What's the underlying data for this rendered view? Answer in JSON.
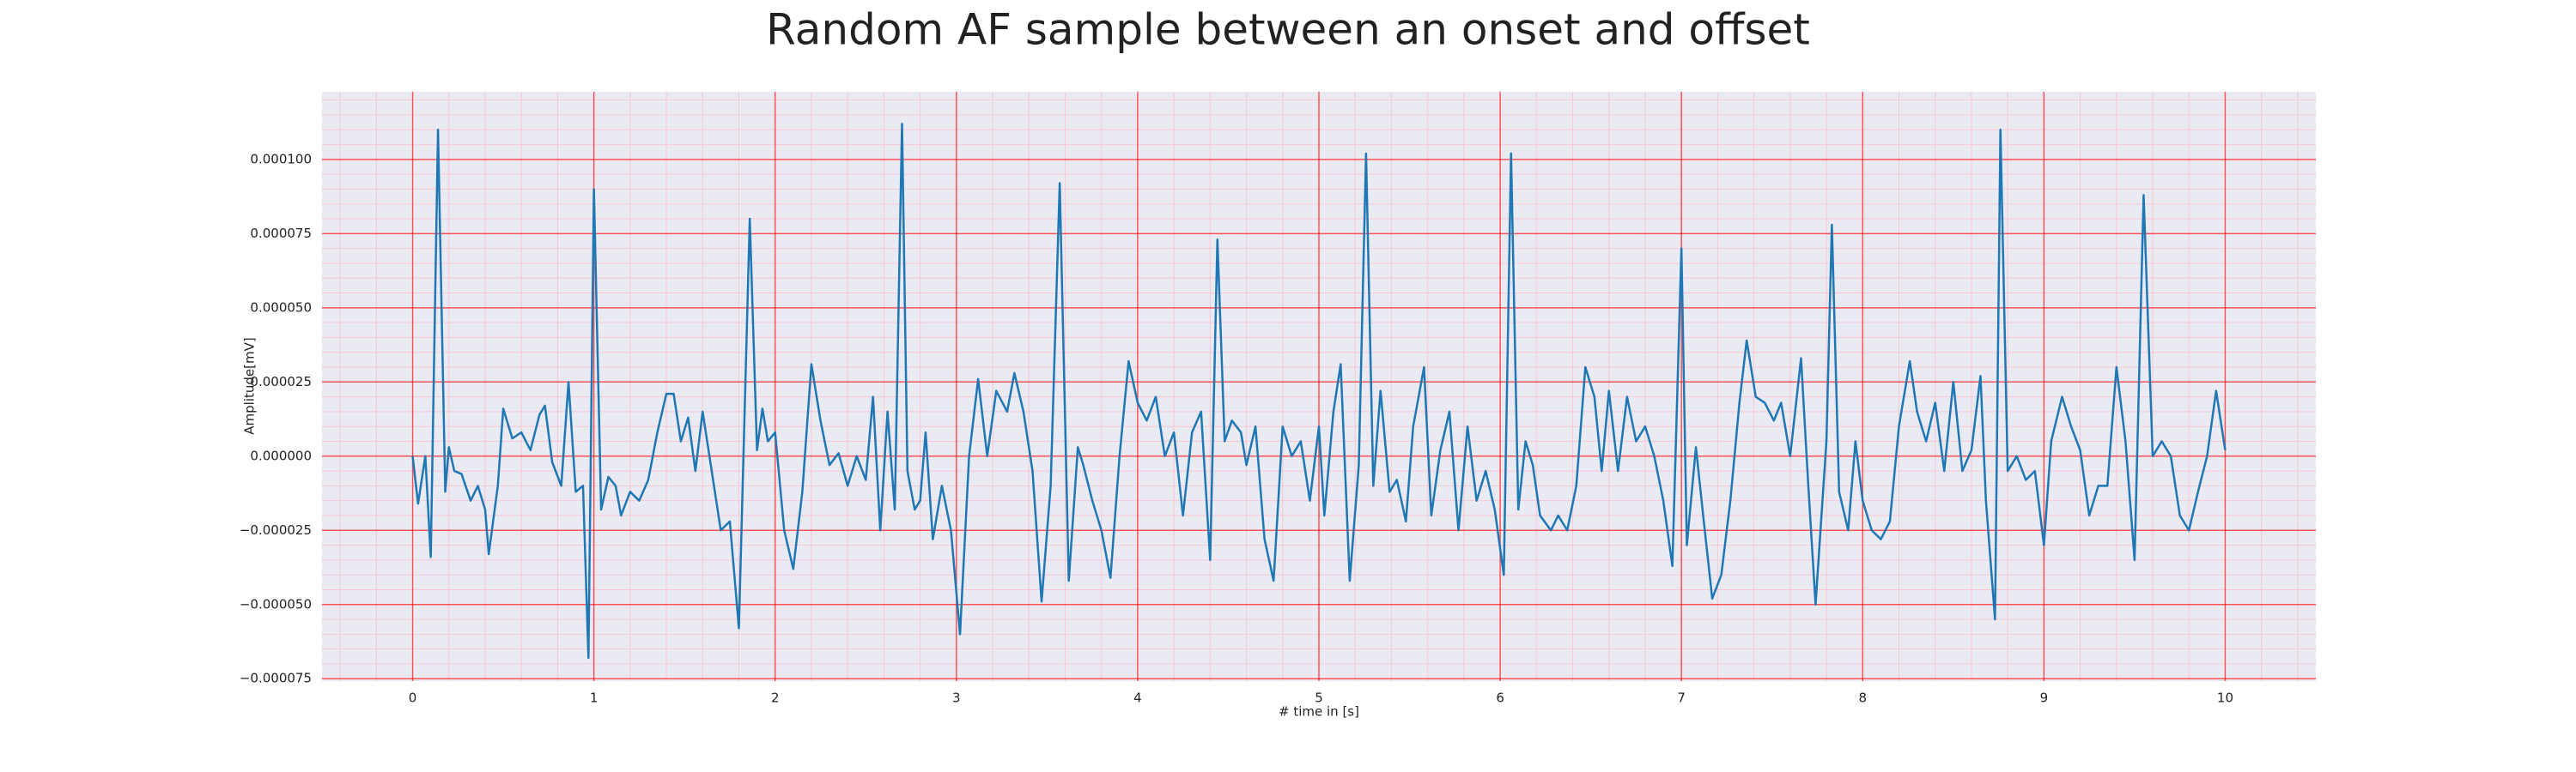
{
  "chart_data": {
    "type": "line",
    "title": "Random AF sample between an onset and offset",
    "xlabel": "# time in [s]",
    "ylabel": "Amplitude[mV]",
    "xlim": [
      -0.5,
      10.5
    ],
    "ylim": [
      -7.58e-05,
      0.0001228
    ],
    "xticks": [
      0,
      1,
      2,
      3,
      4,
      5,
      6,
      7,
      8,
      9,
      10
    ],
    "yticks": [
      {
        "value": -7.5e-05,
        "label": "−0.000075"
      },
      {
        "value": -5e-05,
        "label": "−0.000050"
      },
      {
        "value": -2.5e-05,
        "label": "−0.000025"
      },
      {
        "value": 0,
        "label": "0.000000"
      },
      {
        "value": 2.5e-05,
        "label": "0.000025"
      },
      {
        "value": 5e-05,
        "label": "0.000050"
      },
      {
        "value": 7.5e-05,
        "label": "0.000075"
      },
      {
        "value": 0.0001,
        "label": "0.000100"
      }
    ],
    "grid": true,
    "minor_grid": true,
    "background": "#eaeaf2",
    "grid_color": "#ff0000",
    "minor_grid_color": "#ffb0c0",
    "x": [
      0,
      0.03,
      0.07,
      0.1,
      0.14,
      0.18,
      0.2,
      0.23,
      0.27,
      0.32,
      0.36,
      0.4,
      0.42,
      0.47,
      0.5,
      0.55,
      0.6,
      0.65,
      0.7,
      0.73,
      0.77,
      0.82,
      0.86,
      0.9,
      0.94,
      0.97,
      1.0,
      1.04,
      1.08,
      1.12,
      1.15,
      1.2,
      1.25,
      1.3,
      1.35,
      1.4,
      1.44,
      1.48,
      1.52,
      1.56,
      1.6,
      1.65,
      1.7,
      1.75,
      1.8,
      1.86,
      1.9,
      1.93,
      1.96,
      2.0,
      2.05,
      2.1,
      2.15,
      2.2,
      2.25,
      2.3,
      2.35,
      2.4,
      2.45,
      2.5,
      2.54,
      2.58,
      2.62,
      2.66,
      2.7,
      2.73,
      2.77,
      2.8,
      2.83,
      2.87,
      2.92,
      2.97,
      3.02,
      3.07,
      3.12,
      3.17,
      3.22,
      3.28,
      3.32,
      3.37,
      3.42,
      3.47,
      3.52,
      3.57,
      3.62,
      3.67,
      3.7,
      3.75,
      3.8,
      3.85,
      3.9,
      3.95,
      4.0,
      4.05,
      4.1,
      4.15,
      4.2,
      4.25,
      4.3,
      4.35,
      4.4,
      4.44,
      4.48,
      4.52,
      4.57,
      4.6,
      4.65,
      4.7,
      4.75,
      4.8,
      4.85,
      4.9,
      4.95,
      5.0,
      5.03,
      5.08,
      5.12,
      5.17,
      5.22,
      5.26,
      5.3,
      5.34,
      5.39,
      5.43,
      5.48,
      5.52,
      5.58,
      5.62,
      5.67,
      5.72,
      5.77,
      5.82,
      5.87,
      5.92,
      5.97,
      6.02,
      6.06,
      6.1,
      6.14,
      6.18,
      6.22,
      6.28,
      6.32,
      6.37,
      6.42,
      6.47,
      6.52,
      6.56,
      6.6,
      6.65,
      6.7,
      6.75,
      6.8,
      6.85,
      6.9,
      6.95,
      7.0,
      7.03,
      7.08,
      7.12,
      7.17,
      7.22,
      7.27,
      7.32,
      7.36,
      7.41,
      7.46,
      7.51,
      7.55,
      7.6,
      7.66,
      7.7,
      7.74,
      7.8,
      7.83,
      7.87,
      7.92,
      7.96,
      8.0,
      8.05,
      8.1,
      8.15,
      8.2,
      8.26,
      8.3,
      8.35,
      8.4,
      8.45,
      8.5,
      8.55,
      8.6,
      8.65,
      8.68,
      8.73,
      8.76,
      8.8,
      8.85,
      8.9,
      8.95,
      9.0,
      9.04,
      9.1,
      9.15,
      9.2,
      9.25,
      9.3,
      9.35,
      9.4,
      9.45,
      9.5,
      9.55,
      9.6,
      9.65,
      9.7,
      9.75,
      9.8,
      9.85,
      9.9,
      9.95,
      10.0
    ],
    "series": [
      {
        "color": "#1f77b4",
        "values": [
          0,
          -1.6e-05,
          0,
          -3.4e-05,
          0.00011,
          -1.2e-05,
          3e-06,
          -5e-06,
          -6e-06,
          -1.5e-05,
          -1e-05,
          -1.8e-05,
          -3.3e-05,
          -1e-05,
          1.6e-05,
          6e-06,
          8e-06,
          2e-06,
          1.4e-05,
          1.7e-05,
          -2e-06,
          -1e-05,
          2.5e-05,
          -1.2e-05,
          -1e-05,
          -6.8e-05,
          9e-05,
          -1.8e-05,
          -7e-06,
          -1e-05,
          -2e-05,
          -1.2e-05,
          -1.5e-05,
          -8e-06,
          8e-06,
          2.1e-05,
          2.1e-05,
          5e-06,
          1.3e-05,
          -5e-06,
          1.5e-05,
          -5e-06,
          -2.5e-05,
          -2.2e-05,
          -5.8e-05,
          8e-05,
          2e-06,
          1.6e-05,
          5e-06,
          8e-06,
          -2.5e-05,
          -3.8e-05,
          -1.2e-05,
          3.1e-05,
          1.2e-05,
          -3e-06,
          1e-06,
          -1e-05,
          0,
          -8e-06,
          2e-05,
          -2.5e-05,
          1.5e-05,
          -1.8e-05,
          0.000112,
          -5e-06,
          -1.8e-05,
          -1.5e-05,
          8e-06,
          -2.8e-05,
          -1e-05,
          -2.5e-05,
          -6e-05,
          0,
          2.6e-05,
          0,
          2.2e-05,
          1.5e-05,
          2.8e-05,
          1.5e-05,
          -5e-06,
          -4.9e-05,
          -1e-05,
          9.2e-05,
          -4.2e-05,
          3e-06,
          -3e-06,
          -1.5e-05,
          -2.5e-05,
          -4.1e-05,
          0,
          3.2e-05,
          1.8e-05,
          1.2e-05,
          2e-05,
          0,
          8e-06,
          -2e-05,
          8e-06,
          1.5e-05,
          -3.5e-05,
          7.3e-05,
          5e-06,
          1.2e-05,
          8e-06,
          -3e-06,
          1e-05,
          -2.8e-05,
          -4.2e-05,
          1e-05,
          0,
          5e-06,
          -1.5e-05,
          1e-05,
          -2e-05,
          1.5e-05,
          3.1e-05,
          -4.2e-05,
          -3e-06,
          0.000102,
          -1e-05,
          2.2e-05,
          -1.2e-05,
          -8e-06,
          -2.2e-05,
          1e-05,
          3e-05,
          -2e-05,
          2e-06,
          1.5e-05,
          -2.5e-05,
          1e-05,
          -1.5e-05,
          -5e-06,
          -1.8e-05,
          -4e-05,
          0.000102,
          -1.8e-05,
          5e-06,
          -3e-06,
          -2e-05,
          -2.5e-05,
          -2e-05,
          -2.5e-05,
          -1e-05,
          3e-05,
          2e-05,
          -5e-06,
          2.2e-05,
          -5e-06,
          2e-05,
          5e-06,
          1e-05,
          0,
          -1.5e-05,
          -3.7e-05,
          7e-05,
          -3e-05,
          3e-06,
          -2e-05,
          -4.8e-05,
          -4e-05,
          -1.5e-05,
          1.8e-05,
          3.9e-05,
          2e-05,
          1.8e-05,
          1.2e-05,
          1.8e-05,
          0,
          3.3e-05,
          -1e-05,
          -5e-05,
          5e-06,
          7.8e-05,
          -1.2e-05,
          -2.5e-05,
          5e-06,
          -1.5e-05,
          -2.5e-05,
          -2.8e-05,
          -2.2e-05,
          1e-05,
          3.2e-05,
          1.5e-05,
          5e-06,
          1.8e-05,
          -5e-06,
          2.5e-05,
          -5e-06,
          2e-06,
          2.7e-05,
          -1.5e-05,
          -5.5e-05,
          0.00011,
          -5e-06,
          0,
          -8e-06,
          -5e-06,
          -3e-05,
          5e-06,
          2e-05,
          1e-05,
          2e-06,
          -2e-05,
          -1e-05,
          -1e-05,
          3e-05,
          5e-06,
          -3.5e-05,
          8.8e-05,
          0,
          5e-06,
          0,
          -2e-05,
          -2.5e-05,
          -1.2e-05,
          0,
          2.2e-05,
          2e-06
        ]
      }
    ]
  }
}
